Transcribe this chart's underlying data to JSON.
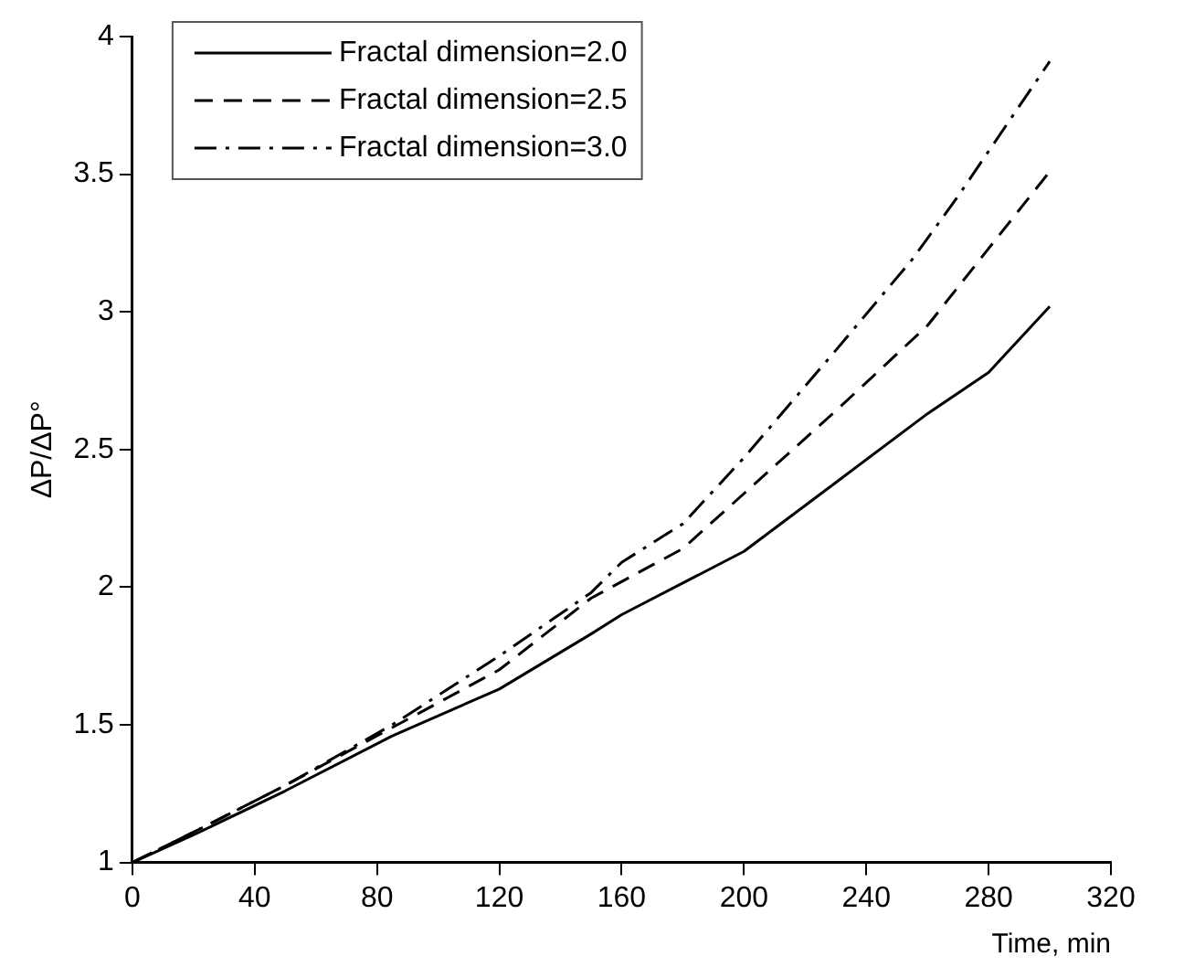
{
  "chart_data": {
    "type": "line",
    "xlabel": "Time, min",
    "ylabel": "ΔP/ΔP°",
    "xlim": [
      0,
      320
    ],
    "xticks": [
      0,
      40,
      80,
      120,
      160,
      200,
      240,
      280,
      320
    ],
    "ylim": [
      1,
      4
    ],
    "yticks": [
      1,
      1.5,
      2,
      2.5,
      3,
      3.5,
      4
    ],
    "grid": false,
    "legend": "top left",
    "marker": "none",
    "series": [
      {
        "name": "Fractal dimension=2.0",
        "color": "#000000",
        "line_style": "solid",
        "x": [
          0,
          20,
          50,
          85,
          120,
          150,
          160,
          200,
          230,
          260,
          280,
          300
        ],
        "values": [
          1.0,
          1.1,
          1.26,
          1.46,
          1.63,
          1.83,
          1.9,
          2.13,
          2.38,
          2.63,
          2.78,
          3.02
        ]
      },
      {
        "name": "Fractal dimension=2.5",
        "color": "#000000",
        "line_style": "dashed",
        "x": [
          0,
          20,
          50,
          85,
          120,
          150,
          180,
          200,
          230,
          260,
          280,
          300
        ],
        "values": [
          1.0,
          1.11,
          1.28,
          1.49,
          1.7,
          1.96,
          2.14,
          2.34,
          2.64,
          2.95,
          3.23,
          3.51
        ]
      },
      {
        "name": "Fractal dimension=3.0",
        "color": "#000000",
        "line_style": "dashdot",
        "x": [
          0,
          20,
          50,
          85,
          120,
          150,
          160,
          180,
          200,
          230,
          255,
          270,
          300
        ],
        "values": [
          1.0,
          1.11,
          1.28,
          1.5,
          1.75,
          1.98,
          2.09,
          2.23,
          2.47,
          2.86,
          3.19,
          3.42,
          3.91
        ]
      }
    ]
  }
}
